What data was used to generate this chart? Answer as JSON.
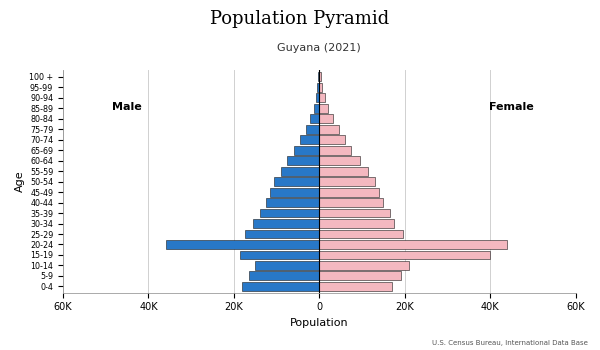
{
  "title": "Population Pyramid",
  "subtitle": "Guyana (2021)",
  "footnote": "U.S. Census Bureau, International Data Base",
  "xlabel": "Population",
  "ylabel": "Age",
  "male_label": "Male",
  "female_label": "Female",
  "age_groups": [
    "0-4",
    "5-9",
    "10-14",
    "15-19",
    "20-24",
    "25-29",
    "30-34",
    "35-39",
    "40-44",
    "45-49",
    "50-54",
    "55-59",
    "60-64",
    "65-69",
    "70-74",
    "75-79",
    "80-84",
    "85-89",
    "90-94",
    "95-99",
    "100 +"
  ],
  "male_values": [
    18000,
    16500,
    15000,
    18500,
    36000,
    17500,
    15500,
    14000,
    12500,
    11500,
    10500,
    9000,
    7500,
    6000,
    4500,
    3200,
    2200,
    1300,
    850,
    450,
    200
  ],
  "female_values": [
    17000,
    19000,
    21000,
    40000,
    44000,
    19500,
    17500,
    16500,
    15000,
    14000,
    13000,
    11500,
    9500,
    7500,
    6000,
    4500,
    3200,
    2100,
    1300,
    650,
    400
  ],
  "male_color": "#2878c8",
  "female_color": "#f4b8c0",
  "male_edge_color": "#1a1a1a",
  "female_edge_color": "#1a1a1a",
  "bg_color": "#ffffff",
  "grid_color": "#d0d0d0",
  "xlim": 60000,
  "xticks": [
    -60000,
    -40000,
    -20000,
    0,
    20000,
    40000,
    60000
  ],
  "xtick_labels": [
    "60K",
    "40K",
    "20K",
    "0",
    "20K",
    "40K",
    "60K"
  ]
}
